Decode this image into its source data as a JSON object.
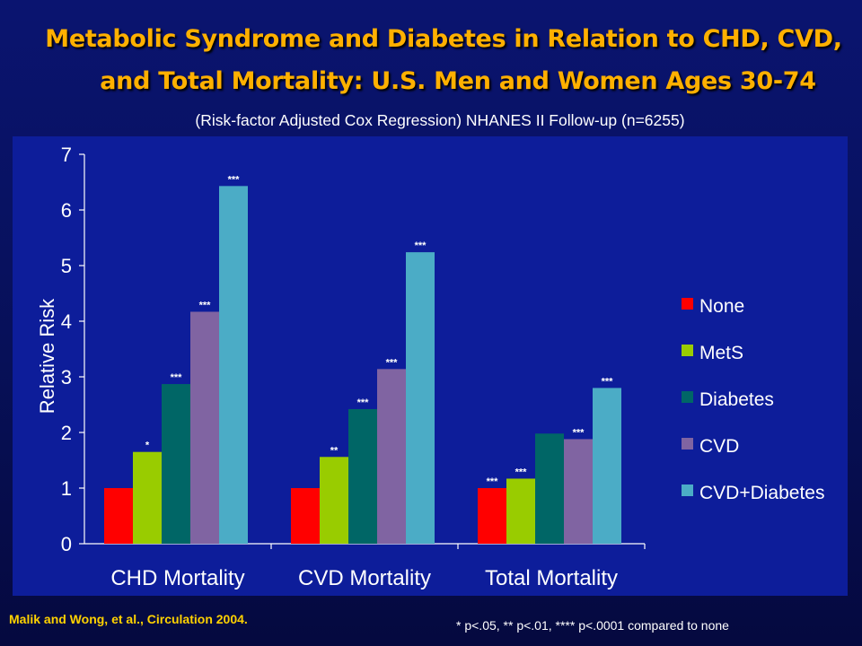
{
  "header": {
    "title_line1": "Metabolic Syndrome and Diabetes in Relation to CHD, CVD,",
    "title_line2": "and Total Mortality: U.S. Men and Women Ages 30-74",
    "subtitle": "(Risk-factor Adjusted Cox Regression) NHANES II Follow-up (n=6255)"
  },
  "footer": {
    "citation": "Malik and Wong, et al., Circulation 2004.",
    "footnote": "* p<.05, ** p<.01, **** p<.0001 compared to none"
  },
  "colors": {
    "background": "#0a1470",
    "panel": "#0d1d9a",
    "title": "#ffb000"
  },
  "chart_data": {
    "type": "bar",
    "ylabel": "Relative Risk",
    "xlabel": "",
    "ylim": [
      0,
      7
    ],
    "yticks": [
      0,
      1,
      2,
      3,
      4,
      5,
      6,
      7
    ],
    "grid": false,
    "legend_position": "right",
    "categories": [
      "CHD Mortality",
      "CVD Mortality",
      "Total Mortality"
    ],
    "series": [
      {
        "name": "None",
        "color": "#ff0000",
        "values": [
          1.0,
          1.0,
          1.0
        ],
        "annotations": [
          "",
          "",
          "***"
        ]
      },
      {
        "name": "MetS",
        "color": "#99cc00",
        "values": [
          1.65,
          1.56,
          1.17
        ],
        "annotations": [
          "*",
          "**",
          "***"
        ]
      },
      {
        "name": "Diabetes",
        "color": "#006666",
        "values": [
          2.87,
          2.42,
          1.98
        ],
        "annotations": [
          "***",
          "***",
          ""
        ]
      },
      {
        "name": "CVD",
        "color": "#8064a2",
        "values": [
          4.17,
          3.14,
          1.88
        ],
        "annotations": [
          "***",
          "***",
          "***"
        ]
      },
      {
        "name": "CVD+Diabetes",
        "color": "#4bacc6",
        "values": [
          6.43,
          5.24,
          2.8
        ],
        "annotations": [
          "***",
          "***",
          "***"
        ]
      }
    ]
  }
}
